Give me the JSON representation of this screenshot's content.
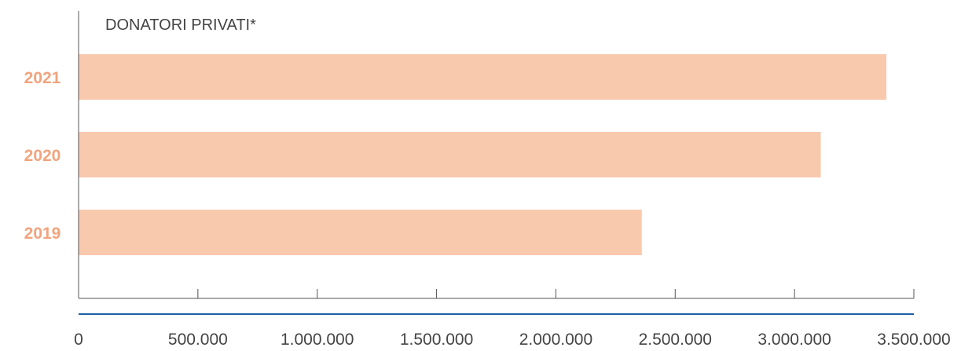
{
  "chart_data": {
    "type": "bar",
    "orientation": "horizontal",
    "title": "DONATORI PRIVATI*",
    "categories": [
      "2021",
      "2020",
      "2019"
    ],
    "values": [
      3385000,
      3110000,
      2360000
    ],
    "xlim": [
      0,
      3500000
    ],
    "xticks": [
      0,
      500000,
      1000000,
      1500000,
      2000000,
      2500000,
      3000000,
      3500000
    ],
    "xtick_labels": [
      "0",
      "500.000",
      "1.000.000",
      "1.500.000",
      "2.000.000",
      "2.500.000",
      "3.000.000",
      "3.500.000"
    ],
    "xlabel": "",
    "ylabel": "",
    "grid": false,
    "legend": "none",
    "colors": {
      "bar": "#f9c9ae",
      "category_label": "#f2a37c",
      "axis": "#555555",
      "baseline": "#1f5fa6",
      "title": "#444444",
      "tick_label": "#444444"
    }
  }
}
